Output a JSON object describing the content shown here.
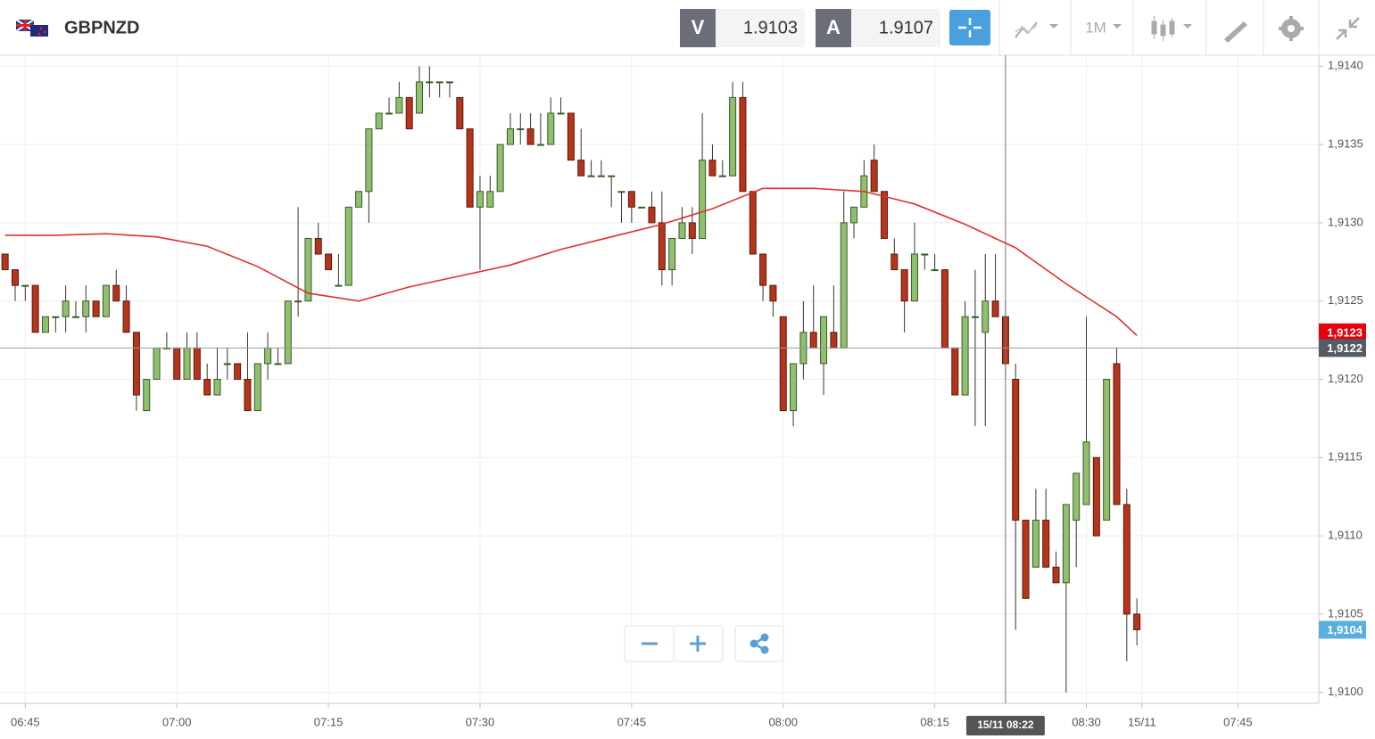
{
  "header": {
    "symbol": "GBPNZD",
    "bid_label": "V",
    "bid": 1.9103,
    "ask_label": "A",
    "ask": 1.9107,
    "timeframe": "1M"
  },
  "chart_data": {
    "type": "candlestick",
    "x": [
      403,
      404,
      405,
      406,
      407,
      408,
      409,
      410,
      411,
      412,
      413,
      414,
      415,
      416,
      417,
      418,
      419,
      420,
      421,
      422,
      423,
      424,
      425,
      426,
      427,
      428,
      429,
      430,
      431,
      432,
      433,
      434,
      435,
      436,
      437,
      438,
      439,
      440,
      441,
      442,
      443,
      444,
      445,
      446,
      447,
      448,
      449,
      450,
      451,
      452,
      453,
      454,
      455,
      456,
      457,
      458,
      459,
      460,
      461,
      462,
      463,
      464,
      465,
      466,
      467,
      468,
      469,
      470,
      471,
      472,
      473,
      474,
      475,
      476,
      477,
      478,
      479,
      480,
      481,
      482,
      483,
      484,
      485,
      486,
      487,
      488,
      489,
      490,
      491,
      492,
      493,
      494,
      495,
      496,
      497,
      498,
      499,
      500,
      501,
      502,
      503,
      504,
      505,
      506,
      507,
      508,
      509,
      510,
      511,
      512,
      513,
      514,
      515
    ],
    "open": [
      1.9128,
      1.9127,
      1.9126,
      1.9126,
      1.9123,
      1.9124,
      1.9124,
      1.9124,
      1.9124,
      1.9125,
      1.9124,
      1.9126,
      1.9125,
      1.9123,
      1.9118,
      1.912,
      1.9122,
      1.9122,
      1.912,
      1.9122,
      1.912,
      1.9119,
      1.9121,
      1.9121,
      1.912,
      1.9118,
      1.9121,
      1.9121,
      1.9121,
      1.9125,
      1.9125,
      1.9129,
      1.9128,
      1.9126,
      1.9126,
      1.9131,
      1.9132,
      1.9136,
      1.9137,
      1.9137,
      1.9138,
      1.9137,
      1.9139,
      1.9139,
      1.9139,
      1.9138,
      1.9136,
      1.9131,
      1.9131,
      1.9132,
      1.9135,
      1.9136,
      1.9136,
      1.9135,
      1.9135,
      1.9137,
      1.9137,
      1.9134,
      1.9133,
      1.9133,
      1.9133,
      1.9132,
      1.9132,
      1.9131,
      1.9131,
      1.913,
      1.9127,
      1.9129,
      1.913,
      1.9129,
      1.9134,
      1.9133,
      1.9133,
      1.9138,
      1.9132,
      1.9128,
      1.9126,
      1.9124,
      1.9118,
      1.9121,
      1.9123,
      1.9121,
      1.9123,
      1.9122,
      1.913,
      1.9131,
      1.9134,
      1.9132,
      1.9128,
      1.9127,
      1.9125,
      1.9128,
      1.9127,
      1.9127,
      1.9122,
      1.9119,
      1.9124,
      1.9123,
      1.9125,
      1.9124,
      1.912,
      1.9111,
      1.9108,
      1.9111,
      1.9108,
      1.9107,
      1.9111,
      1.9112,
      1.9115,
      1.9111,
      1.9121,
      1.9112,
      1.9105
    ],
    "high": [
      1.9128,
      1.9127,
      1.9126,
      1.9126,
      1.9124,
      1.9124,
      1.9126,
      1.9125,
      1.9126,
      1.9125,
      1.9126,
      1.9127,
      1.9126,
      1.9123,
      1.912,
      1.9122,
      1.9123,
      1.9122,
      1.9123,
      1.9123,
      1.9121,
      1.9122,
      1.9122,
      1.9121,
      1.9123,
      1.9121,
      1.9123,
      1.9122,
      1.9125,
      1.9131,
      1.9129,
      1.913,
      1.9128,
      1.9128,
      1.9131,
      1.9132,
      1.9136,
      1.9137,
      1.9138,
      1.9139,
      1.9138,
      1.914,
      1.914,
      1.9139,
      1.9139,
      1.9138,
      1.9136,
      1.9133,
      1.9133,
      1.9135,
      1.9137,
      1.9137,
      1.9137,
      1.9137,
      1.9138,
      1.9138,
      1.9137,
      1.9136,
      1.9134,
      1.9134,
      1.9133,
      1.9132,
      1.9132,
      1.9131,
      1.9132,
      1.9132,
      1.9129,
      1.9131,
      1.9131,
      1.9137,
      1.9135,
      1.9134,
      1.9139,
      1.9139,
      1.9132,
      1.9128,
      1.9126,
      1.9124,
      1.9121,
      1.9125,
      1.9126,
      1.9124,
      1.9126,
      1.9132,
      1.9131,
      1.9134,
      1.9135,
      1.9132,
      1.9129,
      1.9127,
      1.913,
      1.9128,
      1.9128,
      1.9127,
      1.9122,
      1.9125,
      1.9127,
      1.9128,
      1.9128,
      1.9125,
      1.9121,
      1.9111,
      1.9113,
      1.9113,
      1.9109,
      1.9112,
      1.9114,
      1.9124,
      1.9115,
      1.912,
      1.9122,
      1.9113,
      1.9106
    ],
    "low": [
      1.9127,
      1.9125,
      1.9125,
      1.9123,
      1.9123,
      1.9123,
      1.9123,
      1.9124,
      1.9123,
      1.9124,
      1.9124,
      1.9125,
      1.9123,
      1.9118,
      1.9118,
      1.912,
      1.9122,
      1.912,
      1.912,
      1.912,
      1.9119,
      1.9119,
      1.912,
      1.912,
      1.9118,
      1.9118,
      1.912,
      1.9121,
      1.9121,
      1.9124,
      1.9125,
      1.9128,
      1.9127,
      1.9126,
      1.9126,
      1.9131,
      1.913,
      1.9136,
      1.9137,
      1.9137,
      1.9136,
      1.9137,
      1.9138,
      1.9138,
      1.9138,
      1.9136,
      1.9131,
      1.9127,
      1.9131,
      1.9132,
      1.9135,
      1.9135,
      1.9135,
      1.9135,
      1.9135,
      1.9137,
      1.9134,
      1.9133,
      1.9133,
      1.9133,
      1.9131,
      1.913,
      1.913,
      1.9131,
      1.913,
      1.9126,
      1.9126,
      1.9129,
      1.9128,
      1.9129,
      1.9133,
      1.9133,
      1.9133,
      1.9132,
      1.9128,
      1.9125,
      1.9124,
      1.9118,
      1.9117,
      1.912,
      1.9122,
      1.9119,
      1.9122,
      1.9122,
      1.9129,
      1.9131,
      1.9132,
      1.9129,
      1.9127,
      1.9123,
      1.9125,
      1.9127,
      1.9127,
      1.9122,
      1.9119,
      1.9119,
      1.9117,
      1.9117,
      1.9124,
      1.912,
      1.9104,
      1.9106,
      1.9108,
      1.9108,
      1.9107,
      1.91,
      1.9108,
      1.9112,
      1.911,
      1.9111,
      1.9112,
      1.9102,
      1.9103
    ],
    "close": [
      1.9127,
      1.9126,
      1.9126,
      1.9123,
      1.9124,
      1.9124,
      1.9125,
      1.9124,
      1.9125,
      1.9124,
      1.9126,
      1.9125,
      1.9123,
      1.9119,
      1.912,
      1.9122,
      1.9122,
      1.912,
      1.9122,
      1.912,
      1.9119,
      1.912,
      1.9121,
      1.912,
      1.9118,
      1.9121,
      1.9122,
      1.9121,
      1.9125,
      1.9125,
      1.9129,
      1.9128,
      1.9127,
      1.9126,
      1.9131,
      1.9132,
      1.9136,
      1.9137,
      1.9137,
      1.9138,
      1.9136,
      1.9139,
      1.9139,
      1.9139,
      1.9139,
      1.9136,
      1.9131,
      1.9132,
      1.9132,
      1.9135,
      1.9136,
      1.9136,
      1.9135,
      1.9135,
      1.9137,
      1.9137,
      1.9134,
      1.9133,
      1.9133,
      1.9133,
      1.9133,
      1.9132,
      1.9131,
      1.9131,
      1.913,
      1.9127,
      1.9129,
      1.913,
      1.9129,
      1.9134,
      1.9133,
      1.9133,
      1.9138,
      1.9132,
      1.9128,
      1.9126,
      1.9125,
      1.9118,
      1.9121,
      1.9123,
      1.9122,
      1.9124,
      1.9122,
      1.913,
      1.9131,
      1.9133,
      1.9132,
      1.9129,
      1.9127,
      1.9125,
      1.9128,
      1.9128,
      1.9127,
      1.9122,
      1.9119,
      1.9124,
      1.9124,
      1.9125,
      1.9124,
      1.9121,
      1.9111,
      1.9106,
      1.9111,
      1.9108,
      1.9107,
      1.9112,
      1.9114,
      1.9116,
      1.911,
      1.912,
      1.9112,
      1.9105,
      1.9104
    ],
    "up_color": "#8fbf6f",
    "down_color": "#b5351c",
    "moving_average": {
      "color": "#e0302a",
      "x": [
        403,
        408,
        413,
        418,
        423,
        428,
        433,
        438,
        443,
        448,
        453,
        458,
        463,
        468,
        473,
        478,
        483,
        488,
        493,
        498,
        503,
        508,
        513,
        515
      ],
      "values": [
        1.91292,
        1.91292,
        1.91293,
        1.91291,
        1.91285,
        1.91272,
        1.91255,
        1.9125,
        1.91259,
        1.91266,
        1.91273,
        1.91283,
        1.91291,
        1.91299,
        1.91309,
        1.91322,
        1.91322,
        1.9132,
        1.91312,
        1.91299,
        1.91284,
        1.91261,
        1.9124,
        1.91228
      ],
      "last_label": {
        "value": 1.9123,
        "label": "1,9123"
      }
    },
    "last_price": {
      "value": 1.9104,
      "label": "1,9104"
    },
    "crosshair": {
      "x": 502,
      "x_label": "15/11 08:22",
      "y": {
        "value": 1.9122,
        "label": "1,9122"
      }
    },
    "xlim": [
      402.5,
      533
    ],
    "xticks": [
      {
        "value": 405,
        "label": "06:45"
      },
      {
        "value": 420,
        "label": "07:00"
      },
      {
        "value": 435,
        "label": "07:15"
      },
      {
        "value": 450,
        "label": "07:30"
      },
      {
        "value": 465,
        "label": "07:45"
      },
      {
        "value": 480,
        "label": "08:00"
      },
      {
        "value": 495,
        "label": "08:15"
      },
      {
        "value": 510,
        "label": "08:30"
      },
      {
        "value": 515.5,
        "label": "15/11"
      },
      {
        "value": 525,
        "label": "07:45"
      }
    ],
    "ylim": [
      1.90993,
      1.91407
    ],
    "yticks": [
      {
        "value": 1.91,
        "label": "1,9100"
      },
      {
        "value": 1.9105,
        "label": "1,9105"
      },
      {
        "value": 1.911,
        "label": "1,9110"
      },
      {
        "value": 1.9115,
        "label": "1,9115"
      },
      {
        "value": 1.912,
        "label": "1,9120"
      },
      {
        "value": 1.9125,
        "label": "1,9125"
      },
      {
        "value": 1.913,
        "label": "1,9130"
      },
      {
        "value": 1.9135,
        "label": "1,9135"
      },
      {
        "value": 1.914,
        "label": "1,9140"
      }
    ],
    "grid": true
  }
}
